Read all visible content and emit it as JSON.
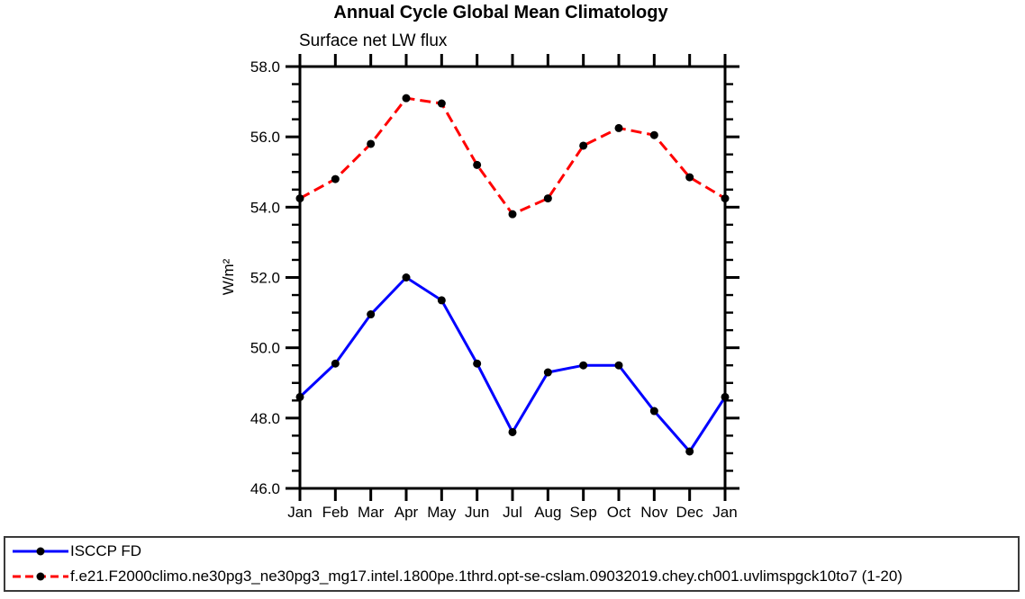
{
  "chart_data": {
    "type": "line",
    "title": "Annual Cycle Global Mean Climatology",
    "subtitle": "Surface net LW flux",
    "ylabel": "W/m²",
    "xlabel": "",
    "ylim": [
      46.0,
      58.0
    ],
    "y_major_tick_interval": 2.0,
    "y_minor_tick_interval": 0.5,
    "grid": false,
    "frame_color": "#000000",
    "legend_position": "bottom",
    "categories": [
      "Jan",
      "Feb",
      "Mar",
      "Apr",
      "May",
      "Jun",
      "Jul",
      "Aug",
      "Sep",
      "Oct",
      "Nov",
      "Dec",
      "Jan"
    ],
    "series": [
      {
        "name": "ISCCP FD",
        "color": "#0000ff",
        "line_style": "solid",
        "marker": "filled-circle",
        "marker_color": "#000000",
        "values": [
          48.6,
          49.55,
          50.95,
          52.0,
          51.35,
          49.55,
          47.6,
          49.3,
          49.5,
          49.5,
          48.2,
          47.05,
          48.6
        ]
      },
      {
        "name": "f.e21.F2000climo.ne30pg3_ne30pg3_mg17.intel.1800pe.1thrd.opt-se-cslam.09032019.chey.ch001.uvlimspgck10to7 (1-20)",
        "color": "#ff0000",
        "line_style": "dashed",
        "marker": "filled-circle",
        "marker_color": "#000000",
        "values": [
          54.25,
          54.8,
          55.8,
          57.1,
          56.95,
          55.2,
          53.8,
          54.25,
          55.75,
          56.25,
          56.05,
          54.85,
          54.25
        ]
      }
    ]
  }
}
